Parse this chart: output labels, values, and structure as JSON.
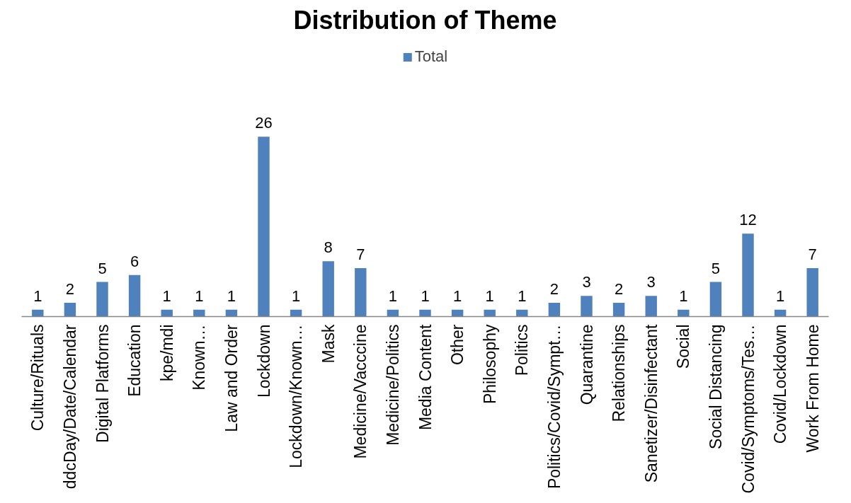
{
  "chart_data": {
    "type": "bar",
    "title": "Distribution of Theme",
    "categories": [
      "Culture/Rituals",
      "ddcDay/Date/Calendar",
      "Digital Platforms",
      "Education",
      "kpe/mdi",
      "Known…",
      "Law and Order",
      "Lockdown",
      "Lockdown/Known…",
      "Mask",
      "Medicine/Vacccine",
      "Medicine/Politics",
      "Media Content",
      "Other",
      "Philosophy",
      "Politics",
      "Politics/Covid/Sympt…",
      "Quarantine",
      "Relationships",
      "Sanetizer/Disinfectant",
      "Social",
      "Social Distancing",
      "Covid/Symptoms/Tes…",
      "Covid/Lockdown",
      "Work From Home"
    ],
    "series": [
      {
        "name": "Total",
        "color": "#4f81bd",
        "values": [
          1,
          2,
          5,
          6,
          1,
          1,
          1,
          26,
          1,
          8,
          7,
          1,
          1,
          1,
          1,
          1,
          2,
          3,
          2,
          3,
          1,
          5,
          12,
          1,
          7
        ]
      }
    ],
    "data_labels": true,
    "legend": "top"
  }
}
